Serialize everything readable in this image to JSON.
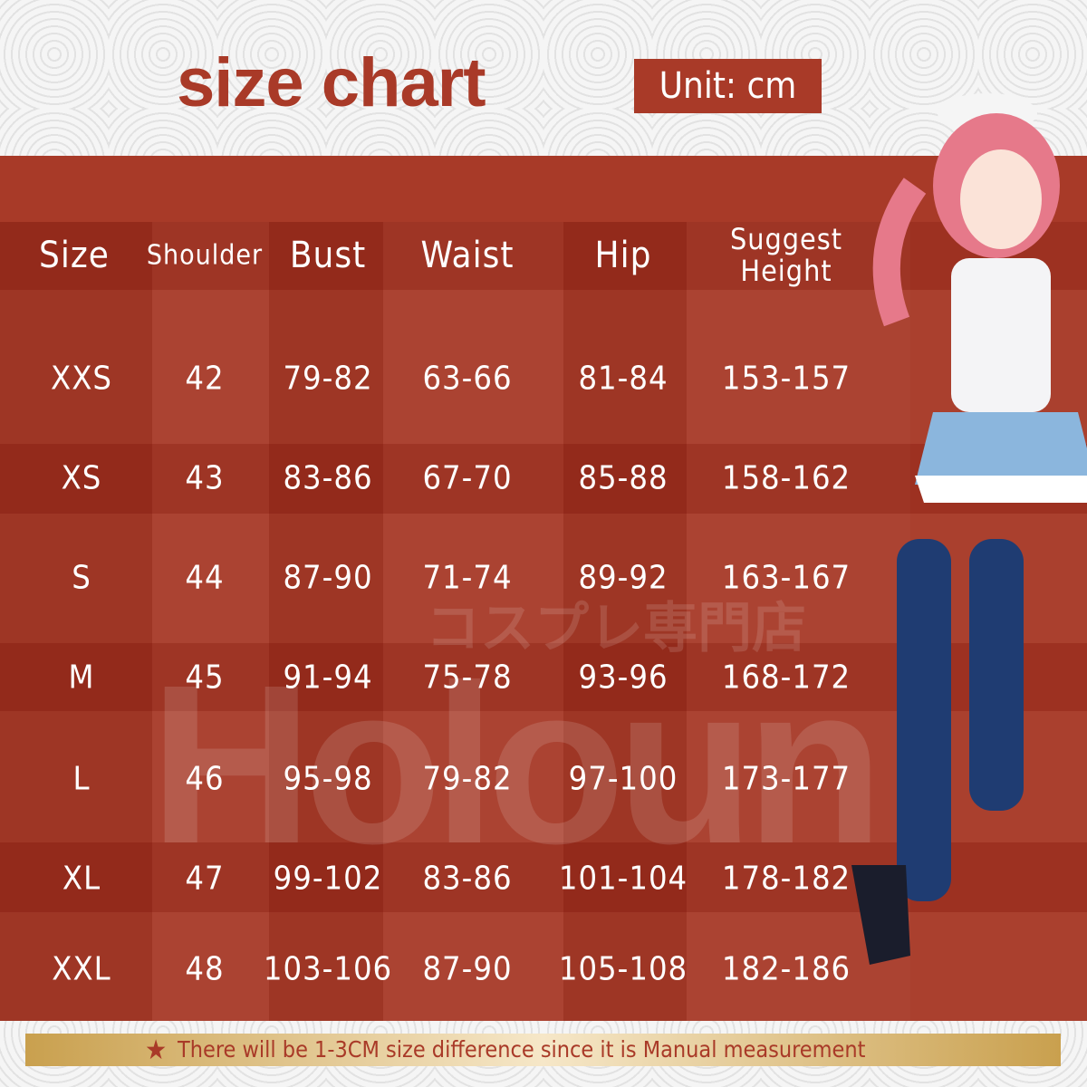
{
  "title": "size chart",
  "unit_label": "Unit: cm",
  "watermarks": [
    "Holoun",
    "コスプレ専門店"
  ],
  "headers": [
    "Size",
    "Shoulder",
    "Bust",
    "Waist",
    "Hip",
    "Suggest Height"
  ],
  "rows": [
    [
      "XXS",
      "42",
      "79-82",
      "63-66",
      "81-84",
      "153-157"
    ],
    [
      "XS",
      "43",
      "83-86",
      "67-70",
      "85-88",
      "158-162"
    ],
    [
      "S",
      "44",
      "87-90",
      "71-74",
      "89-92",
      "163-167"
    ],
    [
      "M",
      "45",
      "91-94",
      "75-78",
      "93-96",
      "168-172"
    ],
    [
      "L",
      "46",
      "95-98",
      "79-82",
      "97-100",
      "173-177"
    ],
    [
      "XL",
      "47",
      "99-102",
      "83-86",
      "101-104",
      "178-182"
    ],
    [
      "XXL",
      "48",
      "103-106",
      "87-90",
      "105-108",
      "182-186"
    ]
  ],
  "footer_note": "There will be 1-3CM size difference since it is Manual measurement",
  "colors": {
    "brand_red": "#a93a28",
    "note_gold": "#c9a04e"
  }
}
